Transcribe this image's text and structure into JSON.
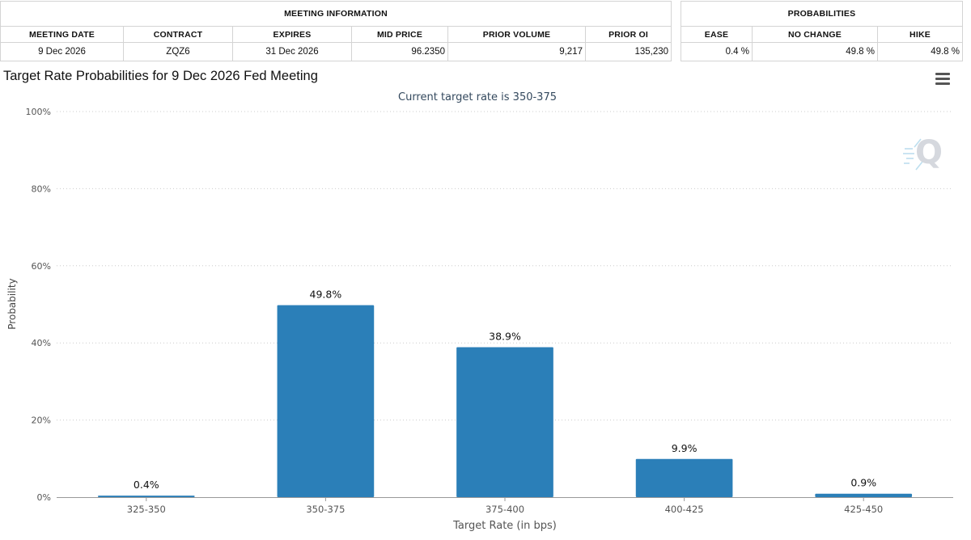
{
  "meeting_info": {
    "section_title": "MEETING INFORMATION",
    "headers": [
      "MEETING DATE",
      "CONTRACT",
      "EXPIRES",
      "MID PRICE",
      "PRIOR VOLUME",
      "PRIOR OI"
    ],
    "values": {
      "meeting_date": "9 Dec 2026",
      "contract": "ZQZ6",
      "expires": "31 Dec 2026",
      "mid_price": "96.2350",
      "prior_volume": "9,217",
      "prior_oi": "135,230"
    }
  },
  "probabilities": {
    "section_title": "PROBABILITIES",
    "headers": [
      "EASE",
      "NO CHANGE",
      "HIKE"
    ],
    "values": {
      "ease": "0.4 %",
      "no_change": "49.8 %",
      "hike": "49.8 %"
    }
  },
  "chart_title": "Target Rate Probabilities for 9 Dec 2026 Fed Meeting",
  "logo_letter": "Q",
  "icons": {
    "menu": "hamburger-menu-icon",
    "logo": "q-logo-icon"
  },
  "colors": {
    "bar": "#2b7fb8",
    "subtitle": "#34495e",
    "grid": "#cccccc"
  },
  "chart_data": {
    "type": "bar",
    "title": "Target Rate Probabilities for 9 Dec 2026 Fed Meeting",
    "subtitle": "Current target rate is 350-375",
    "xlabel": "Target Rate (in bps)",
    "ylabel": "Probability",
    "categories": [
      "325-350",
      "350-375",
      "375-400",
      "400-425",
      "425-450"
    ],
    "values": [
      0.4,
      49.8,
      38.9,
      9.9,
      0.9
    ],
    "data_labels": [
      "0.4%",
      "49.8%",
      "38.9%",
      "9.9%",
      "0.9%"
    ],
    "ylim": [
      0,
      100
    ],
    "yticks": [
      0,
      20,
      40,
      60,
      80,
      100
    ],
    "ytick_labels": [
      "0%",
      "20%",
      "40%",
      "60%",
      "80%",
      "100%"
    ],
    "grid": true
  }
}
